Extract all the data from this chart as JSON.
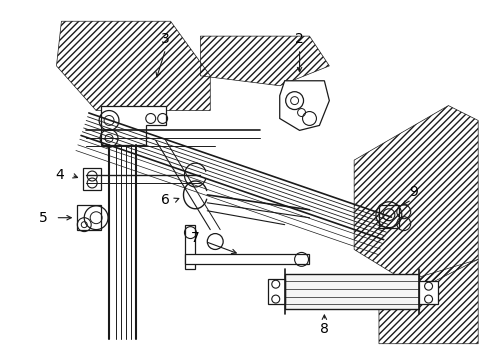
{
  "background_color": "#ffffff",
  "line_color": "#1a1a1a",
  "figure_width": 4.89,
  "figure_height": 3.6,
  "dpi": 100,
  "label_fontsize": 10
}
